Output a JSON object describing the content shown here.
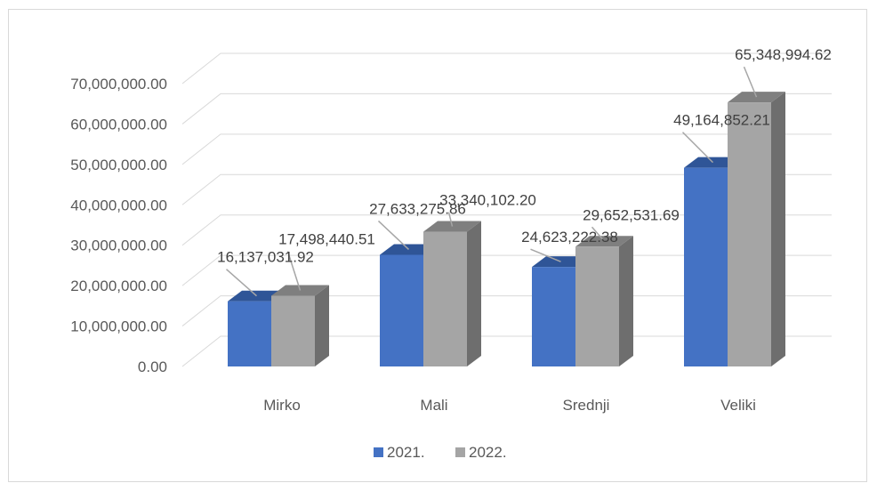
{
  "chart_data": {
    "type": "bar",
    "three_d": true,
    "categories": [
      "Mirko",
      "Mali",
      "Srednji",
      "Veliki"
    ],
    "series": [
      {
        "name": "2021.",
        "color": "#4472c4",
        "side_color": "#2f5597",
        "top_color": "#2f5597",
        "values": [
          16137031.92,
          27633275.86,
          24623222.38,
          49164852.21
        ],
        "labels": [
          "16,137,031.92",
          "27,633,275.86",
          "24,623,222.38",
          "49,164,852.21"
        ]
      },
      {
        "name": "2022.",
        "color": "#a5a5a5",
        "side_color": "#6e6e6e",
        "top_color": "#7f7f7f",
        "values": [
          17498440.51,
          33340102.2,
          29652531.69,
          65348994.62
        ],
        "labels": [
          "17,498,440.51",
          "33,340,102.20",
          "29,652,531.69",
          "65,348,994.62"
        ]
      }
    ],
    "yticks": [
      "0.00",
      "10,000,000.00",
      "20,000,000.00",
      "30,000,000.00",
      "40,000,000.00",
      "50,000,000.00",
      "60,000,000.00",
      "70,000,000.00"
    ],
    "ylim": [
      0,
      70000000
    ],
    "grid": true,
    "legend": "bottom",
    "title": "",
    "xlabel": "",
    "ylabel": ""
  }
}
